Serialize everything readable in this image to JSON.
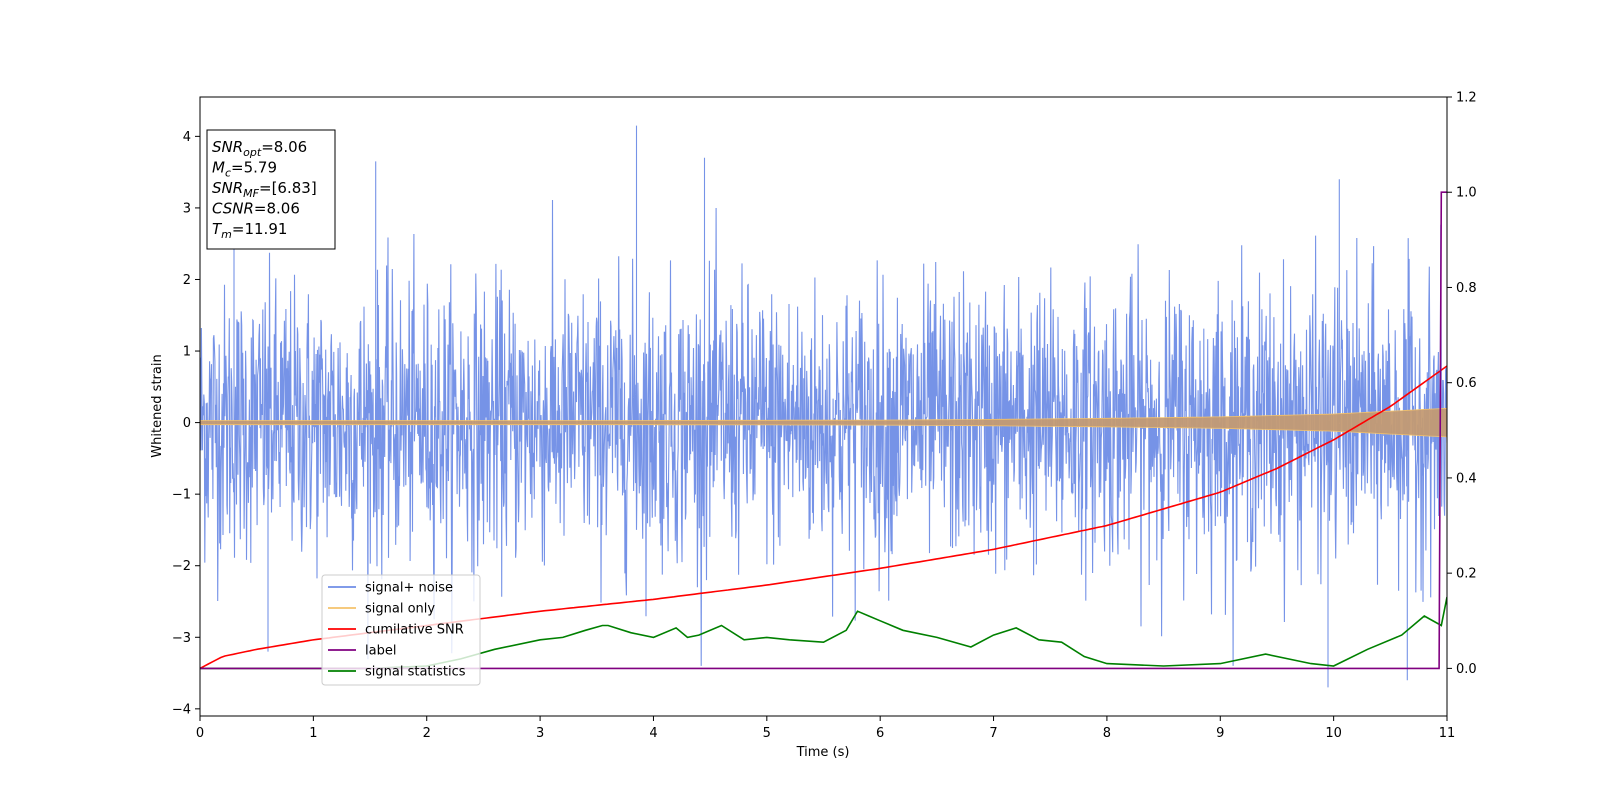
{
  "chart_data": {
    "type": "line",
    "title": "",
    "xlabel": "Time (s)",
    "ylabel": "Whitened strain",
    "xlim": [
      0,
      11
    ],
    "ylim_left": [
      -4.1,
      4.55
    ],
    "ylim_right": [
      -0.1,
      1.2
    ],
    "x_ticks": [
      0,
      1,
      2,
      3,
      4,
      5,
      6,
      7,
      8,
      9,
      10,
      11
    ],
    "y_ticks_left": [
      -4,
      -3,
      -2,
      -1,
      0,
      1,
      2,
      3,
      4
    ],
    "y_ticks_right": [
      0.0,
      0.2,
      0.4,
      0.6,
      0.8,
      1.0,
      1.2
    ],
    "y_tick_labels_left": [
      "−4",
      "−3",
      "−2",
      "−1",
      "0",
      "1",
      "2",
      "3",
      "4"
    ],
    "y_tick_labels_right": [
      "0.0",
      "0.2",
      "0.4",
      "0.6",
      "0.8",
      "1.0",
      "1.2"
    ],
    "grid": false,
    "legend_position": "lower-left",
    "info_box": {
      "lines": [
        {
          "sym": "SNR",
          "sub": "opt",
          "rest": "=8.06"
        },
        {
          "sym": "M",
          "sub": "c",
          "rest": "=5.79"
        },
        {
          "sym": "SNR",
          "sub": "MF",
          "rest": "=[6.83]"
        },
        {
          "sym": "CSNR",
          "sub": "",
          "rest": "=8.06"
        },
        {
          "sym": "T",
          "sub": "m",
          "rest": "=11.91"
        }
      ]
    },
    "series": [
      {
        "name": "signal+ noise",
        "color": "#6f8de6",
        "axis": "left",
        "description_points": {
          "x": [
            0,
            11
          ],
          "band_typical": [
            -1.5,
            1.5
          ],
          "peaks": [
            [
              0.3,
              2.9
            ],
            [
              1.55,
              3.65
            ],
            [
              3.85,
              4.15
            ],
            [
              4.45,
              3.7
            ],
            [
              10.05,
              3.4
            ],
            [
              9.95,
              -3.7
            ],
            [
              10.65,
              -3.6
            ],
            [
              0.6,
              -3.2
            ]
          ]
        }
      },
      {
        "name": "signal only",
        "color": "#f5c36b",
        "axis": "left",
        "envelope": {
          "x": [
            0,
            2,
            4,
            6,
            7,
            8,
            9,
            10,
            11
          ],
          "amp": [
            0.03,
            0.03,
            0.03,
            0.035,
            0.045,
            0.06,
            0.08,
            0.12,
            0.2
          ]
        }
      },
      {
        "name": "cumilative SNR",
        "color": "#ff0000",
        "axis": "right",
        "x": [
          0,
          0.2,
          0.5,
          1,
          2,
          3,
          4,
          5,
          6,
          7,
          8,
          9,
          9.5,
          10,
          10.5,
          11
        ],
        "y": [
          0.0,
          0.025,
          0.04,
          0.06,
          0.09,
          0.12,
          0.145,
          0.175,
          0.21,
          0.25,
          0.3,
          0.37,
          0.42,
          0.48,
          0.55,
          0.635
        ]
      },
      {
        "name": "label",
        "color": "#800080",
        "axis": "right",
        "x": [
          0,
          10.93,
          10.95,
          11
        ],
        "y": [
          0.0,
          0.0,
          1.0,
          1.0
        ]
      },
      {
        "name": "signal statistics",
        "color": "#008000",
        "axis": "right",
        "x": [
          0,
          0.5,
          1,
          1.5,
          2,
          2.3,
          2.6,
          3,
          3.2,
          3.4,
          3.55,
          3.6,
          3.8,
          4,
          4.2,
          4.3,
          4.4,
          4.6,
          4.8,
          5,
          5.2,
          5.5,
          5.7,
          5.8,
          5.9,
          6,
          6.2,
          6.5,
          6.8,
          7,
          7.2,
          7.4,
          7.6,
          7.8,
          8,
          8.5,
          9,
          9.4,
          9.8,
          10,
          10.3,
          10.6,
          10.8,
          10.95,
          11
        ],
        "y": [
          0.0,
          0.0,
          0.0,
          0.0,
          0.005,
          0.02,
          0.04,
          0.06,
          0.065,
          0.08,
          0.09,
          0.09,
          0.075,
          0.065,
          0.085,
          0.065,
          0.07,
          0.09,
          0.06,
          0.065,
          0.06,
          0.055,
          0.08,
          0.12,
          0.11,
          0.1,
          0.08,
          0.065,
          0.045,
          0.07,
          0.085,
          0.06,
          0.055,
          0.025,
          0.01,
          0.005,
          0.01,
          0.03,
          0.01,
          0.005,
          0.04,
          0.07,
          0.11,
          0.09,
          0.15
        ]
      }
    ]
  }
}
